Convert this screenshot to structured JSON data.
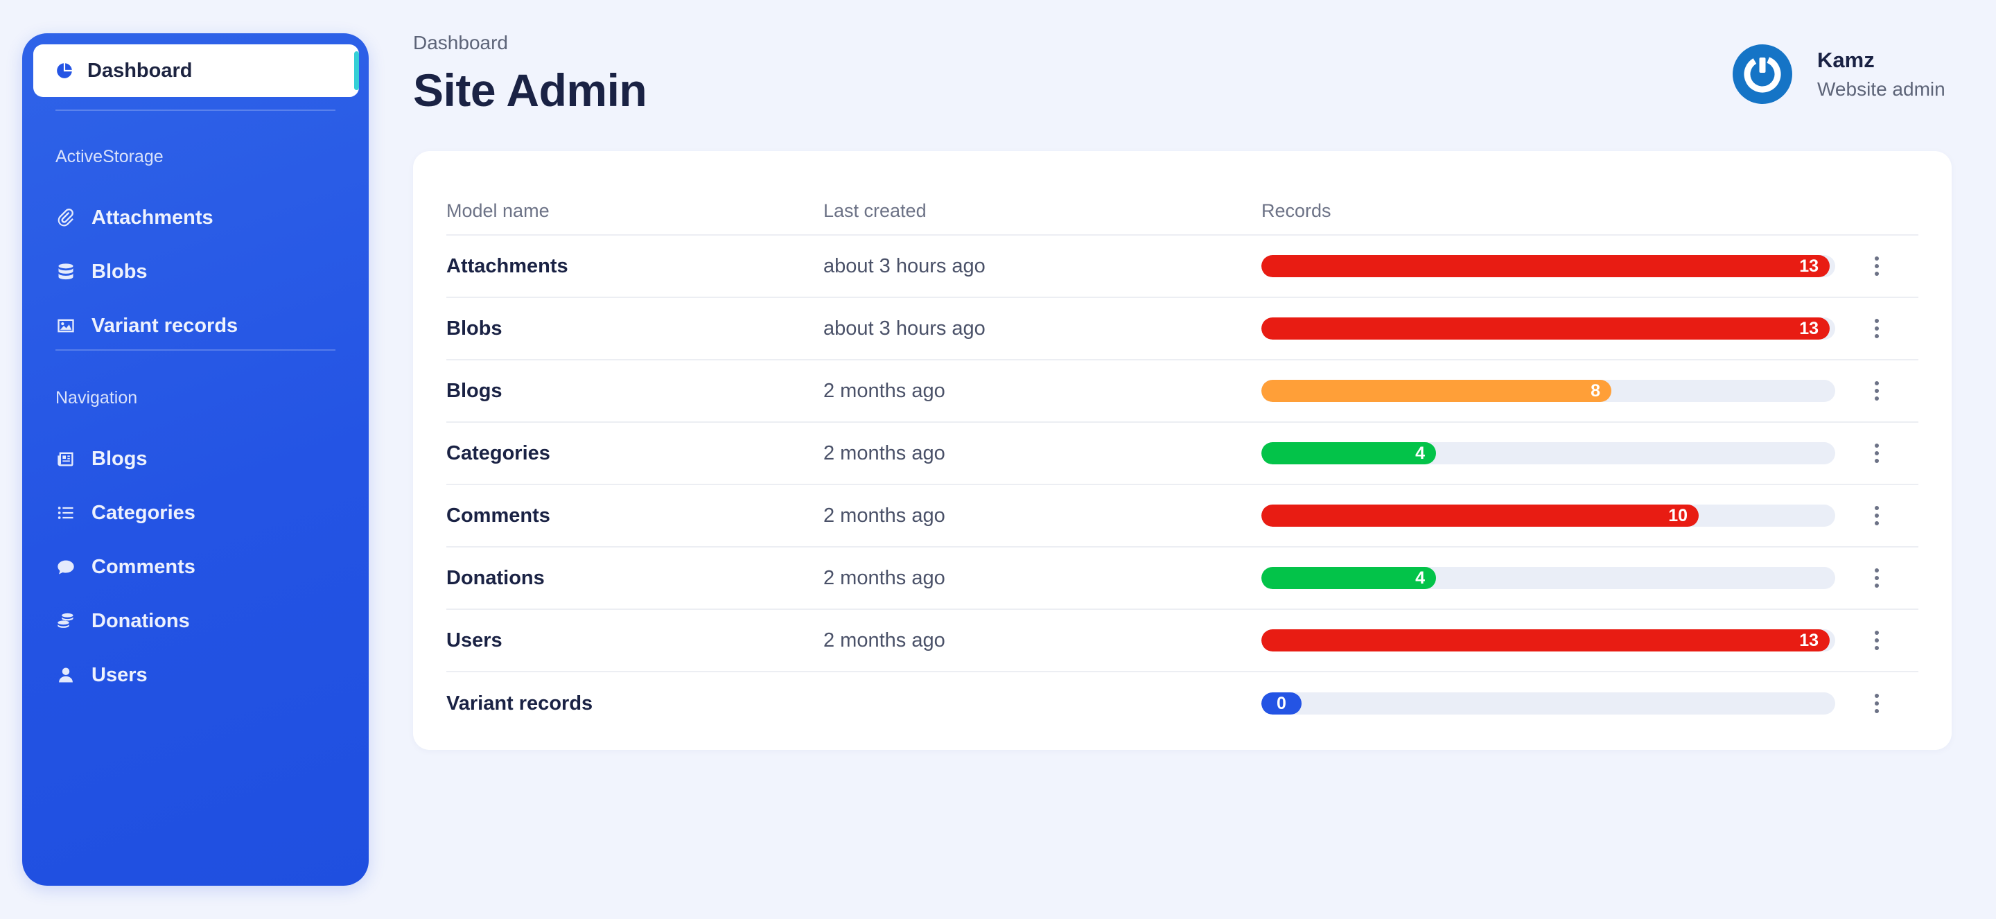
{
  "sidebar": {
    "active_item": {
      "label": "Dashboard",
      "icon": "pie-chart-icon"
    },
    "sections": [
      {
        "label": "ActiveStorage",
        "items": [
          {
            "label": "Attachments",
            "icon": "paperclip-icon"
          },
          {
            "label": "Blobs",
            "icon": "database-icon"
          },
          {
            "label": "Variant records",
            "icon": "image-icon"
          }
        ]
      },
      {
        "label": "Navigation",
        "items": [
          {
            "label": "Blogs",
            "icon": "newspaper-icon"
          },
          {
            "label": "Categories",
            "icon": "list-icon"
          },
          {
            "label": "Comments",
            "icon": "comment-icon"
          },
          {
            "label": "Donations",
            "icon": "coins-icon"
          },
          {
            "label": "Users",
            "icon": "user-icon"
          }
        ]
      }
    ]
  },
  "header": {
    "breadcrumb": "Dashboard",
    "title": "Site Admin"
  },
  "user": {
    "name": "Kamz",
    "role": "Website admin",
    "avatar_icon": "power-logo-icon"
  },
  "table": {
    "columns": {
      "model": "Model name",
      "created": "Last created",
      "records": "Records"
    },
    "max_records": 13,
    "rows": [
      {
        "model": "Attachments",
        "created": "about 3 hours ago",
        "records": 13,
        "color": "#e81c13"
      },
      {
        "model": "Blobs",
        "created": "about 3 hours ago",
        "records": 13,
        "color": "#e81c13"
      },
      {
        "model": "Blogs",
        "created": "2 months ago",
        "records": 8,
        "color": "#ff9f38"
      },
      {
        "model": "Categories",
        "created": "2 months ago",
        "records": 4,
        "color": "#03c349"
      },
      {
        "model": "Comments",
        "created": "2 months ago",
        "records": 10,
        "color": "#e81c13"
      },
      {
        "model": "Donations",
        "created": "2 months ago",
        "records": 4,
        "color": "#03c349"
      },
      {
        "model": "Users",
        "created": "2 months ago",
        "records": 13,
        "color": "#e81c13"
      },
      {
        "model": "Variant records",
        "created": "",
        "records": 0,
        "color": "#2454e4"
      }
    ]
  },
  "colors": {
    "sidebar": "#2454e4",
    "background": "#f1f4fd",
    "high": "#e81c13",
    "medium": "#ff9f38",
    "low": "#03c349",
    "zero": "#2454e4"
  }
}
